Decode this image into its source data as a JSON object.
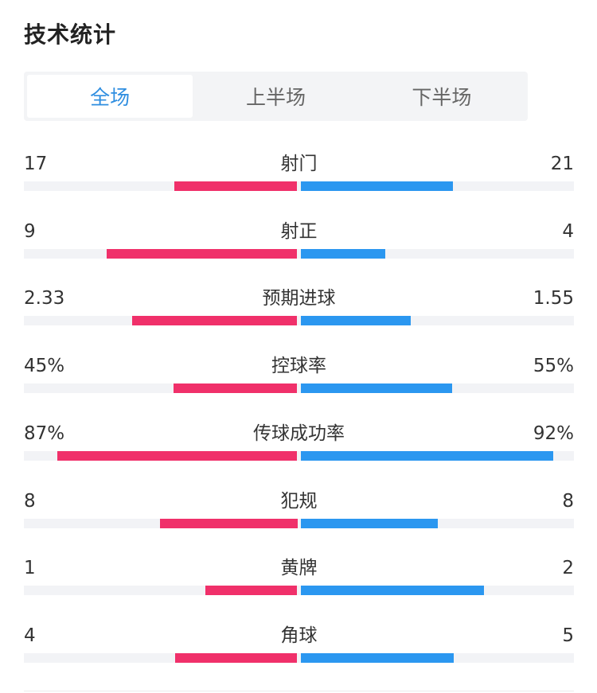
{
  "title": "技术统计",
  "tabs": [
    {
      "label": "全场",
      "active": true
    },
    {
      "label": "上半场",
      "active": false
    },
    {
      "label": "下半场",
      "active": false
    }
  ],
  "colors": {
    "home": "#f0306a",
    "away": "#2b97f0",
    "active_tab": "#2f8ee0"
  },
  "stats": [
    {
      "label": "射门",
      "home": "17",
      "away": "21",
      "home_share": 0.447,
      "away_share": 0.553
    },
    {
      "label": "射正",
      "home": "9",
      "away": "4",
      "home_share": 0.692,
      "away_share": 0.308
    },
    {
      "label": "预期进球",
      "home": "2.33",
      "away": "1.55",
      "home_share": 0.6,
      "away_share": 0.4
    },
    {
      "label": "控球率",
      "home": "45%",
      "away": "55%",
      "home_share": 0.45,
      "away_share": 0.55
    },
    {
      "label": "传球成功率",
      "home": "87%",
      "away": "92%",
      "home_share": 0.872,
      "away_share": 0.92
    },
    {
      "label": "犯规",
      "home": "8",
      "away": "8",
      "home_share": 0.5,
      "away_share": 0.5
    },
    {
      "label": "黄牌",
      "home": "1",
      "away": "2",
      "home_share": 0.333,
      "away_share": 0.667
    },
    {
      "label": "角球",
      "home": "4",
      "away": "5",
      "home_share": 0.444,
      "away_share": 0.556
    }
  ]
}
